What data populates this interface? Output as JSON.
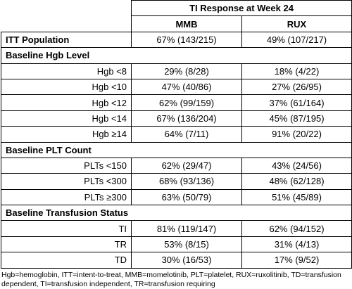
{
  "table": {
    "header": {
      "title": "TI Response at Week 24",
      "columns": [
        "MMB",
        "RUX"
      ]
    },
    "top_row": {
      "label": "ITT Population",
      "values": [
        "67% (143/215)",
        "49% (107/217)"
      ]
    },
    "sections": [
      {
        "title": "Baseline Hgb Level",
        "rows": [
          {
            "label": "Hgb <8",
            "values": [
              "29% (8/28)",
              "18% (4/22)"
            ]
          },
          {
            "label": "Hgb <10",
            "values": [
              "47% (40/86)",
              "27% (26/95)"
            ]
          },
          {
            "label": "Hgb <12",
            "values": [
              "62% (99/159)",
              "37% (61/164)"
            ]
          },
          {
            "label": "Hgb <14",
            "values": [
              "67% (136/204)",
              "45% (87/195)"
            ]
          },
          {
            "label": "Hgb ≥14",
            "values": [
              "64% (7/11)",
              "91% (20/22)"
            ]
          }
        ]
      },
      {
        "title": "Baseline PLT Count",
        "rows": [
          {
            "label": "PLTs <150",
            "values": [
              "62% (29/47)",
              "43% (24/56)"
            ]
          },
          {
            "label": "PLTs <300",
            "values": [
              "68% (93/136)",
              "48% (62/128)"
            ]
          },
          {
            "label": "PLTs ≥300",
            "values": [
              "63% (50/79)",
              "51% (45/89)"
            ]
          }
        ]
      },
      {
        "title": "Baseline Transfusion Status",
        "rows": [
          {
            "label": "TI",
            "values": [
              "81% (119/147)",
              "62% (94/152)"
            ]
          },
          {
            "label": "TR",
            "values": [
              "53% (8/15)",
              "31% (4/13)"
            ]
          },
          {
            "label": "TD",
            "values": [
              "30% (16/53)",
              "17% (9/52)"
            ]
          }
        ]
      }
    ]
  },
  "footnote": "Hgb=hemoglobin, ITT=intent-to-treat, MMB=momelotinib, PLT=platelet, RUX=ruxolitinib, TD=transfusion dependent, TI=transfusion independent, TR=transfusion requiring"
}
